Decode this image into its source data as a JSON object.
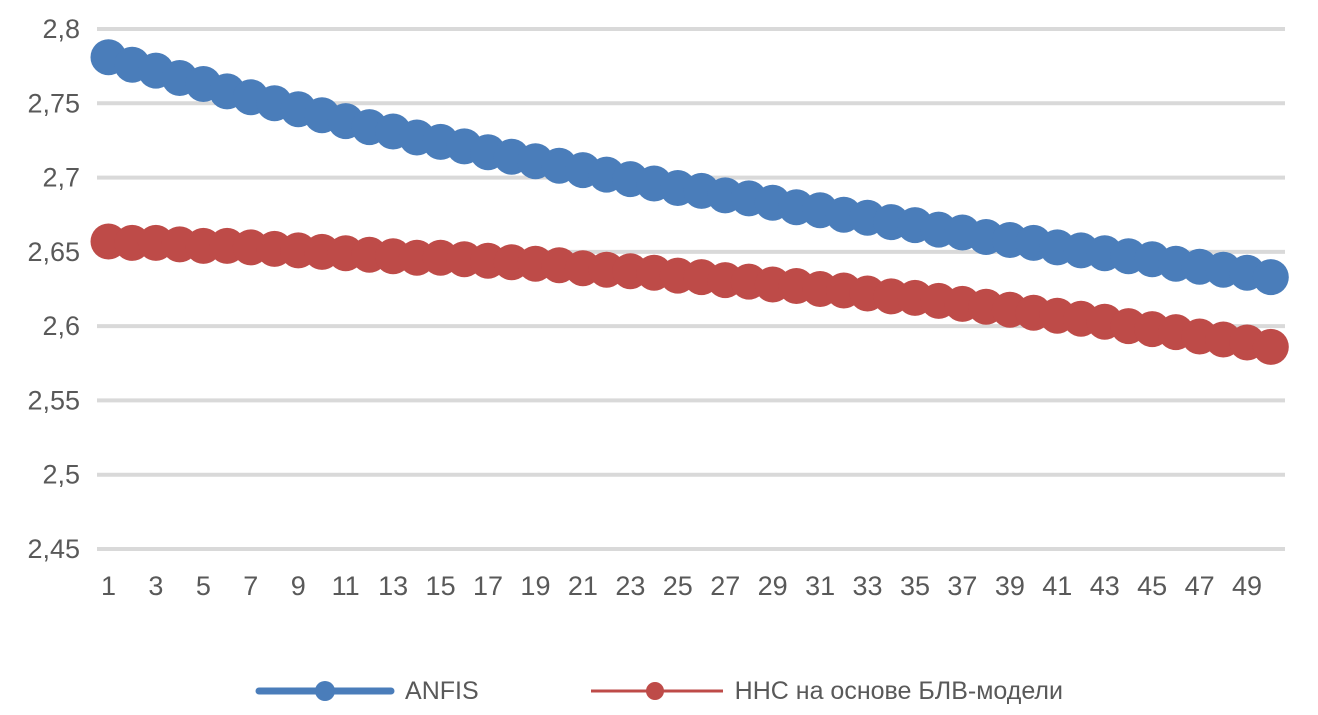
{
  "chart_data": {
    "type": "line",
    "title": "",
    "xlabel": "",
    "ylabel": "",
    "x": [
      1,
      2,
      3,
      4,
      5,
      6,
      7,
      8,
      9,
      10,
      11,
      12,
      13,
      14,
      15,
      16,
      17,
      18,
      19,
      20,
      21,
      22,
      23,
      24,
      25,
      26,
      27,
      28,
      29,
      30,
      31,
      32,
      33,
      34,
      35,
      36,
      37,
      38,
      39,
      40,
      41,
      42,
      43,
      44,
      45,
      46,
      47,
      48,
      49,
      50
    ],
    "series": [
      {
        "name": "ANFIS",
        "color": "#4a7dba",
        "values": [
          2.781,
          2.776,
          2.772,
          2.767,
          2.763,
          2.758,
          2.754,
          2.75,
          2.746,
          2.742,
          2.738,
          2.734,
          2.731,
          2.727,
          2.724,
          2.721,
          2.717,
          2.714,
          2.711,
          2.708,
          2.705,
          2.702,
          2.699,
          2.696,
          2.693,
          2.691,
          2.688,
          2.686,
          2.683,
          2.68,
          2.678,
          2.675,
          2.673,
          2.67,
          2.668,
          2.665,
          2.663,
          2.66,
          2.658,
          2.656,
          2.653,
          2.651,
          2.649,
          2.647,
          2.645,
          2.642,
          2.64,
          2.638,
          2.636,
          2.633
        ]
      },
      {
        "name": "ННС на основе БЛВ-модели",
        "color": "#be4b48",
        "values": [
          2.657,
          2.656,
          2.656,
          2.655,
          2.654,
          2.654,
          2.653,
          2.652,
          2.651,
          2.65,
          2.649,
          2.648,
          2.647,
          2.646,
          2.646,
          2.645,
          2.644,
          2.643,
          2.642,
          2.641,
          2.639,
          2.638,
          2.637,
          2.636,
          2.634,
          2.633,
          2.631,
          2.63,
          2.628,
          2.627,
          2.625,
          2.624,
          2.622,
          2.62,
          2.619,
          2.617,
          2.615,
          2.613,
          2.611,
          2.609,
          2.607,
          2.605,
          2.603,
          2.6,
          2.598,
          2.596,
          2.593,
          2.591,
          2.589,
          2.586
        ]
      }
    ],
    "y_ticks": [
      {
        "value": 2.8,
        "label": "2,8"
      },
      {
        "value": 2.75,
        "label": "2,75"
      },
      {
        "value": 2.7,
        "label": "2,7"
      },
      {
        "value": 2.65,
        "label": "2,65"
      },
      {
        "value": 2.6,
        "label": "2,6"
      },
      {
        "value": 2.55,
        "label": "2,55"
      },
      {
        "value": 2.5,
        "label": "2,5"
      },
      {
        "value": 2.45,
        "label": "2,45"
      }
    ],
    "x_ticks": [
      {
        "value": 1,
        "label": "1"
      },
      {
        "value": 3,
        "label": "3"
      },
      {
        "value": 5,
        "label": "5"
      },
      {
        "value": 7,
        "label": "7"
      },
      {
        "value": 9,
        "label": "9"
      },
      {
        "value": 11,
        "label": "11"
      },
      {
        "value": 13,
        "label": "13"
      },
      {
        "value": 15,
        "label": "15"
      },
      {
        "value": 17,
        "label": "17"
      },
      {
        "value": 19,
        "label": "19"
      },
      {
        "value": 21,
        "label": "21"
      },
      {
        "value": 23,
        "label": "23"
      },
      {
        "value": 25,
        "label": "25"
      },
      {
        "value": 27,
        "label": "27"
      },
      {
        "value": 29,
        "label": "29"
      },
      {
        "value": 31,
        "label": "31"
      },
      {
        "value": 33,
        "label": "33"
      },
      {
        "value": 35,
        "label": "35"
      },
      {
        "value": 37,
        "label": "37"
      },
      {
        "value": 39,
        "label": "39"
      },
      {
        "value": 41,
        "label": "41"
      },
      {
        "value": 43,
        "label": "43"
      },
      {
        "value": 45,
        "label": "45"
      },
      {
        "value": 47,
        "label": "47"
      },
      {
        "value": 49,
        "label": "49"
      }
    ],
    "ylim": [
      2.45,
      2.8
    ],
    "xlim": [
      1,
      50
    ],
    "grid": "horizontal",
    "gridline_color": "#d9d9d9",
    "axis_text_color": "#595959",
    "legend_position": "bottom",
    "decimal_separator": ","
  }
}
